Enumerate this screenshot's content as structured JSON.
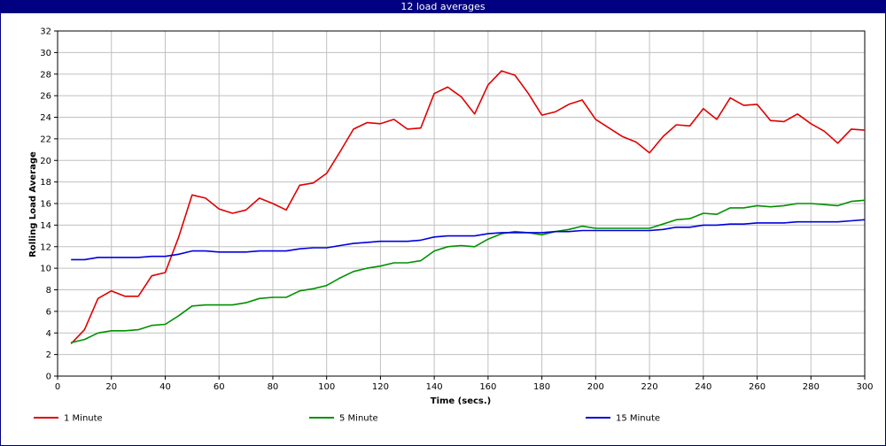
{
  "window": {
    "title": "12 load averages"
  },
  "chart_data": {
    "type": "line",
    "title": "12 load averages",
    "xlabel": "Time (secs.)",
    "ylabel": "Rolling Load Average",
    "xlim": [
      0,
      300
    ],
    "ylim": [
      0,
      32
    ],
    "xticks": [
      0,
      20,
      40,
      60,
      80,
      100,
      120,
      140,
      160,
      180,
      200,
      220,
      240,
      260,
      280,
      300
    ],
    "yticks": [
      0,
      2,
      4,
      6,
      8,
      10,
      12,
      14,
      16,
      18,
      20,
      22,
      24,
      26,
      28,
      30,
      32
    ],
    "grid": true,
    "legend_position": "bottom",
    "x": [
      5,
      10,
      15,
      20,
      25,
      30,
      35,
      40,
      45,
      50,
      55,
      60,
      65,
      70,
      75,
      80,
      85,
      90,
      95,
      100,
      105,
      110,
      115,
      120,
      125,
      130,
      135,
      140,
      145,
      150,
      155,
      160,
      165,
      170,
      175,
      180,
      185,
      190,
      195,
      200,
      205,
      210,
      215,
      220,
      225,
      230,
      235,
      240,
      245,
      250,
      255,
      260,
      265,
      270,
      275,
      280,
      285,
      290,
      295,
      300
    ],
    "series": [
      {
        "name": "1 Minute",
        "color": "#e00000",
        "values": [
          3.0,
          4.3,
          7.2,
          7.9,
          7.4,
          7.4,
          9.3,
          9.6,
          12.9,
          16.8,
          16.5,
          15.5,
          15.1,
          15.4,
          16.5,
          16.0,
          15.4,
          17.7,
          17.9,
          18.8,
          20.8,
          22.9,
          23.5,
          23.4,
          23.8,
          22.9,
          23.0,
          26.2,
          26.8,
          25.9,
          24.3,
          27.0,
          28.3,
          27.9,
          26.2,
          24.2,
          24.5,
          25.2,
          25.6,
          23.8,
          23.0,
          22.2,
          21.7,
          20.7,
          22.2,
          23.3,
          23.2,
          24.8,
          23.8,
          25.8,
          25.1,
          25.2,
          23.7,
          23.6,
          24.3,
          23.4,
          22.7,
          21.6,
          22.9,
          22.8
        ]
      },
      {
        "name": "5 Minute",
        "color": "#009000",
        "values": [
          3.1,
          3.4,
          4.0,
          4.2,
          4.2,
          4.3,
          4.7,
          4.8,
          5.6,
          6.5,
          6.6,
          6.6,
          6.6,
          6.8,
          7.2,
          7.3,
          7.3,
          7.9,
          8.1,
          8.4,
          9.1,
          9.7,
          10.0,
          10.2,
          10.5,
          10.5,
          10.7,
          11.6,
          12.0,
          12.1,
          12.0,
          12.7,
          13.2,
          13.4,
          13.3,
          13.1,
          13.4,
          13.6,
          13.9,
          13.7,
          13.7,
          13.7,
          13.7,
          13.7,
          14.1,
          14.5,
          14.6,
          15.1,
          15.0,
          15.6,
          15.6,
          15.8,
          15.7,
          15.8,
          16.0,
          16.0,
          15.9,
          15.8,
          16.2,
          16.3
        ]
      },
      {
        "name": "15 Minute",
        "color": "#0000e0",
        "values": [
          10.8,
          10.8,
          11.0,
          11.0,
          11.0,
          11.0,
          11.1,
          11.1,
          11.3,
          11.6,
          11.6,
          11.5,
          11.5,
          11.5,
          11.6,
          11.6,
          11.6,
          11.8,
          11.9,
          11.9,
          12.1,
          12.3,
          12.4,
          12.5,
          12.5,
          12.5,
          12.6,
          12.9,
          13.0,
          13.0,
          13.0,
          13.2,
          13.3,
          13.3,
          13.3,
          13.3,
          13.4,
          13.4,
          13.5,
          13.5,
          13.5,
          13.5,
          13.5,
          13.5,
          13.6,
          13.8,
          13.8,
          14.0,
          14.0,
          14.1,
          14.1,
          14.2,
          14.2,
          14.2,
          14.3,
          14.3,
          14.3,
          14.3,
          14.4,
          14.5
        ]
      }
    ]
  }
}
